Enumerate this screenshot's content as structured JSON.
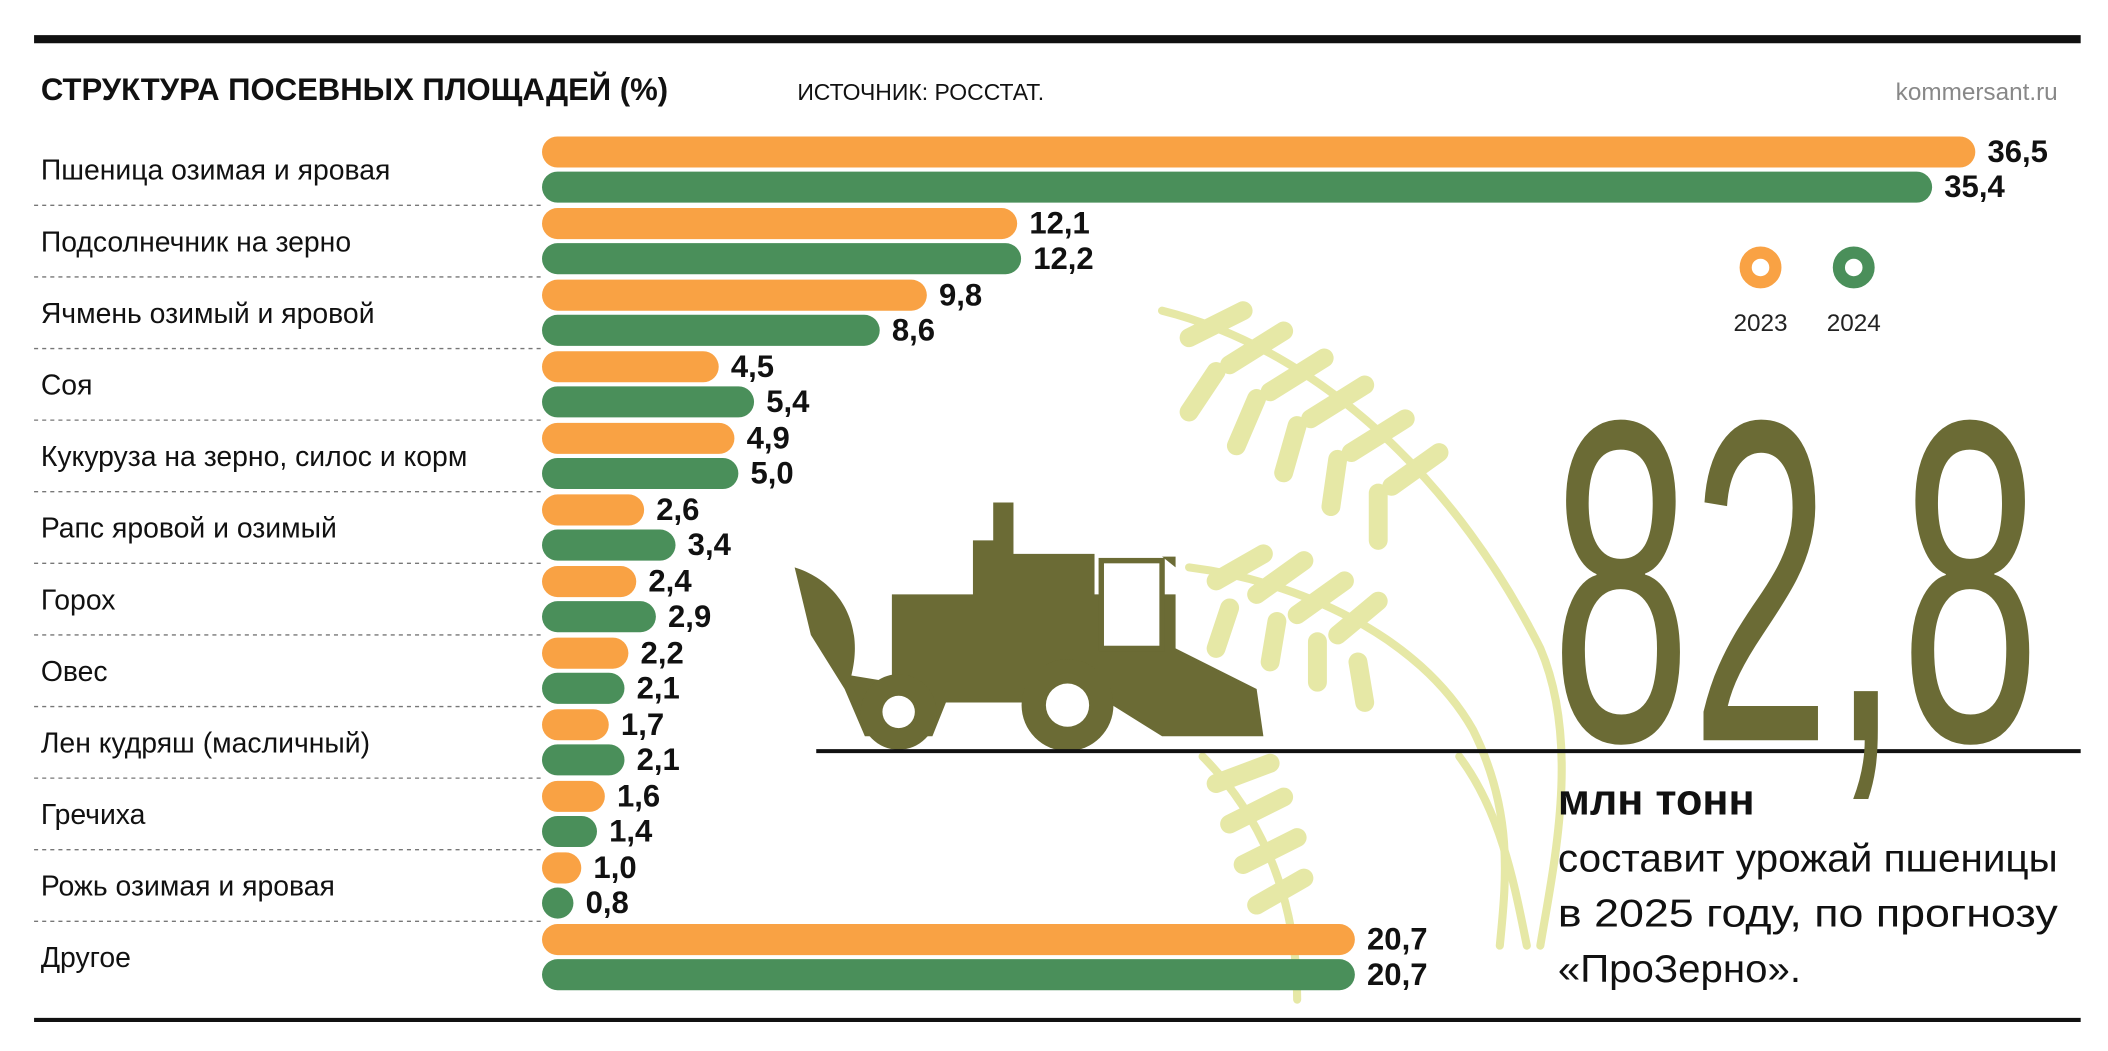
{
  "chart_data": {
    "type": "bar",
    "orientation": "horizontal",
    "title": "СТРУКТУРА ПОСЕВНЫХ ПЛОЩАДЕЙ (%)",
    "source": "ИСТОЧНИК: РОССТАТ.",
    "site": "kommersant.ru",
    "categories": [
      "Пшеница озимая и яровая",
      "Подсолнечник на зерно",
      "Ячмень озимый и яровой",
      "Соя",
      "Кукуруза на зерно, силос и корм",
      "Рапс яровой и озимый",
      "Горох",
      "Овес",
      "Лен кудряш (масличный)",
      "Гречиха",
      "Рожь озимая и яровая",
      "Другое"
    ],
    "series": [
      {
        "name": "2023",
        "color": "#f9a244",
        "values": [
          36.5,
          12.1,
          9.8,
          4.5,
          4.9,
          2.6,
          2.4,
          2.2,
          1.7,
          1.6,
          1.0,
          20.7
        ],
        "value_labels": [
          "36,5",
          "12,1",
          "9,8",
          "4,5",
          "4,9",
          "2,6",
          "2,4",
          "2,2",
          "1,7",
          "1,6",
          "1,0",
          "20,7"
        ]
      },
      {
        "name": "2024",
        "color": "#4a8f5a",
        "values": [
          35.4,
          12.2,
          8.6,
          5.4,
          5.0,
          3.4,
          2.9,
          2.1,
          2.1,
          1.4,
          0.8,
          20.7
        ],
        "value_labels": [
          "35,4",
          "12,2",
          "8,6",
          "5,4",
          "5,0",
          "3,4",
          "2,9",
          "2,1",
          "2,1",
          "1,4",
          "0,8",
          "20,7"
        ]
      }
    ],
    "annotation": {
      "number": "82,8",
      "unit": "млн тонн",
      "text": [
        "составит урожай пшеницы",
        "в 2025 году, по прогнозу",
        "«ПроЗерно»."
      ]
    }
  }
}
